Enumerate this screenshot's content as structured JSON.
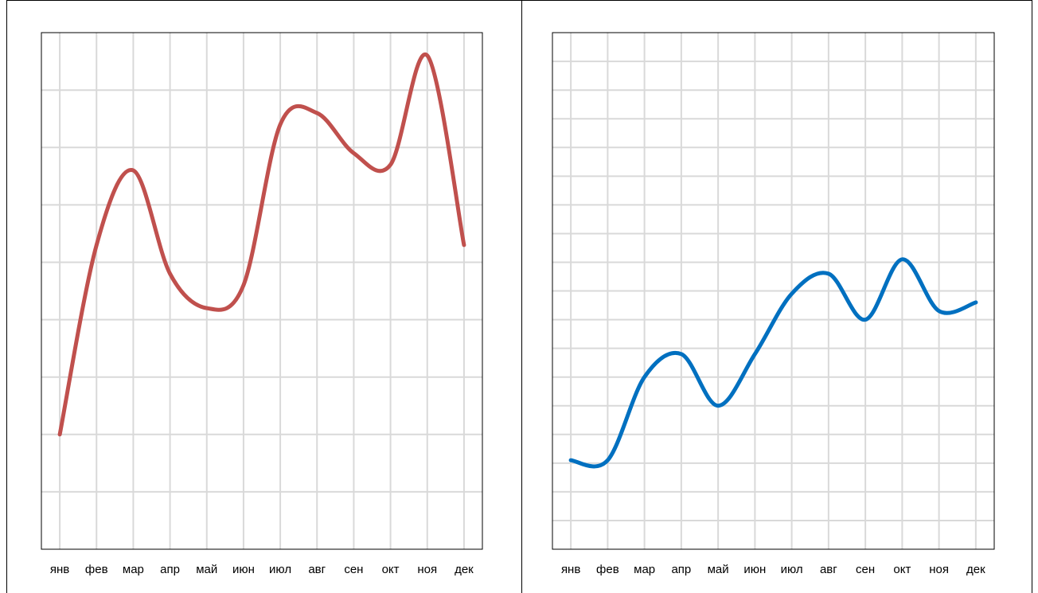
{
  "chart_data": [
    {
      "type": "line",
      "title": "",
      "xlabel": "",
      "ylabel": "",
      "categories": [
        "янв",
        "фев",
        "мар",
        "апр",
        "май",
        "июн",
        "июл",
        "авг",
        "сен",
        "окт",
        "ноя",
        "дек"
      ],
      "ylim": [
        0,
        9
      ],
      "grid": true,
      "color": "#C0504D",
      "series": [
        {
          "values": [
            2.0,
            5.3,
            6.6,
            4.8,
            4.2,
            4.6,
            7.4,
            7.6,
            6.9,
            6.7,
            8.6,
            5.3
          ]
        }
      ]
    },
    {
      "type": "line",
      "title": "",
      "xlabel": "",
      "ylabel": "",
      "categories": [
        "янв",
        "фев",
        "мар",
        "апр",
        "май",
        "июн",
        "июл",
        "авг",
        "сен",
        "окт",
        "ноя",
        "дек"
      ],
      "ylim": [
        0,
        18
      ],
      "grid": true,
      "color": "#0070C0",
      "series": [
        {
          "values": [
            3.1,
            3.1,
            6.0,
            6.8,
            5.0,
            6.8,
            8.9,
            9.6,
            8.0,
            10.1,
            8.3,
            8.6
          ]
        }
      ]
    }
  ]
}
